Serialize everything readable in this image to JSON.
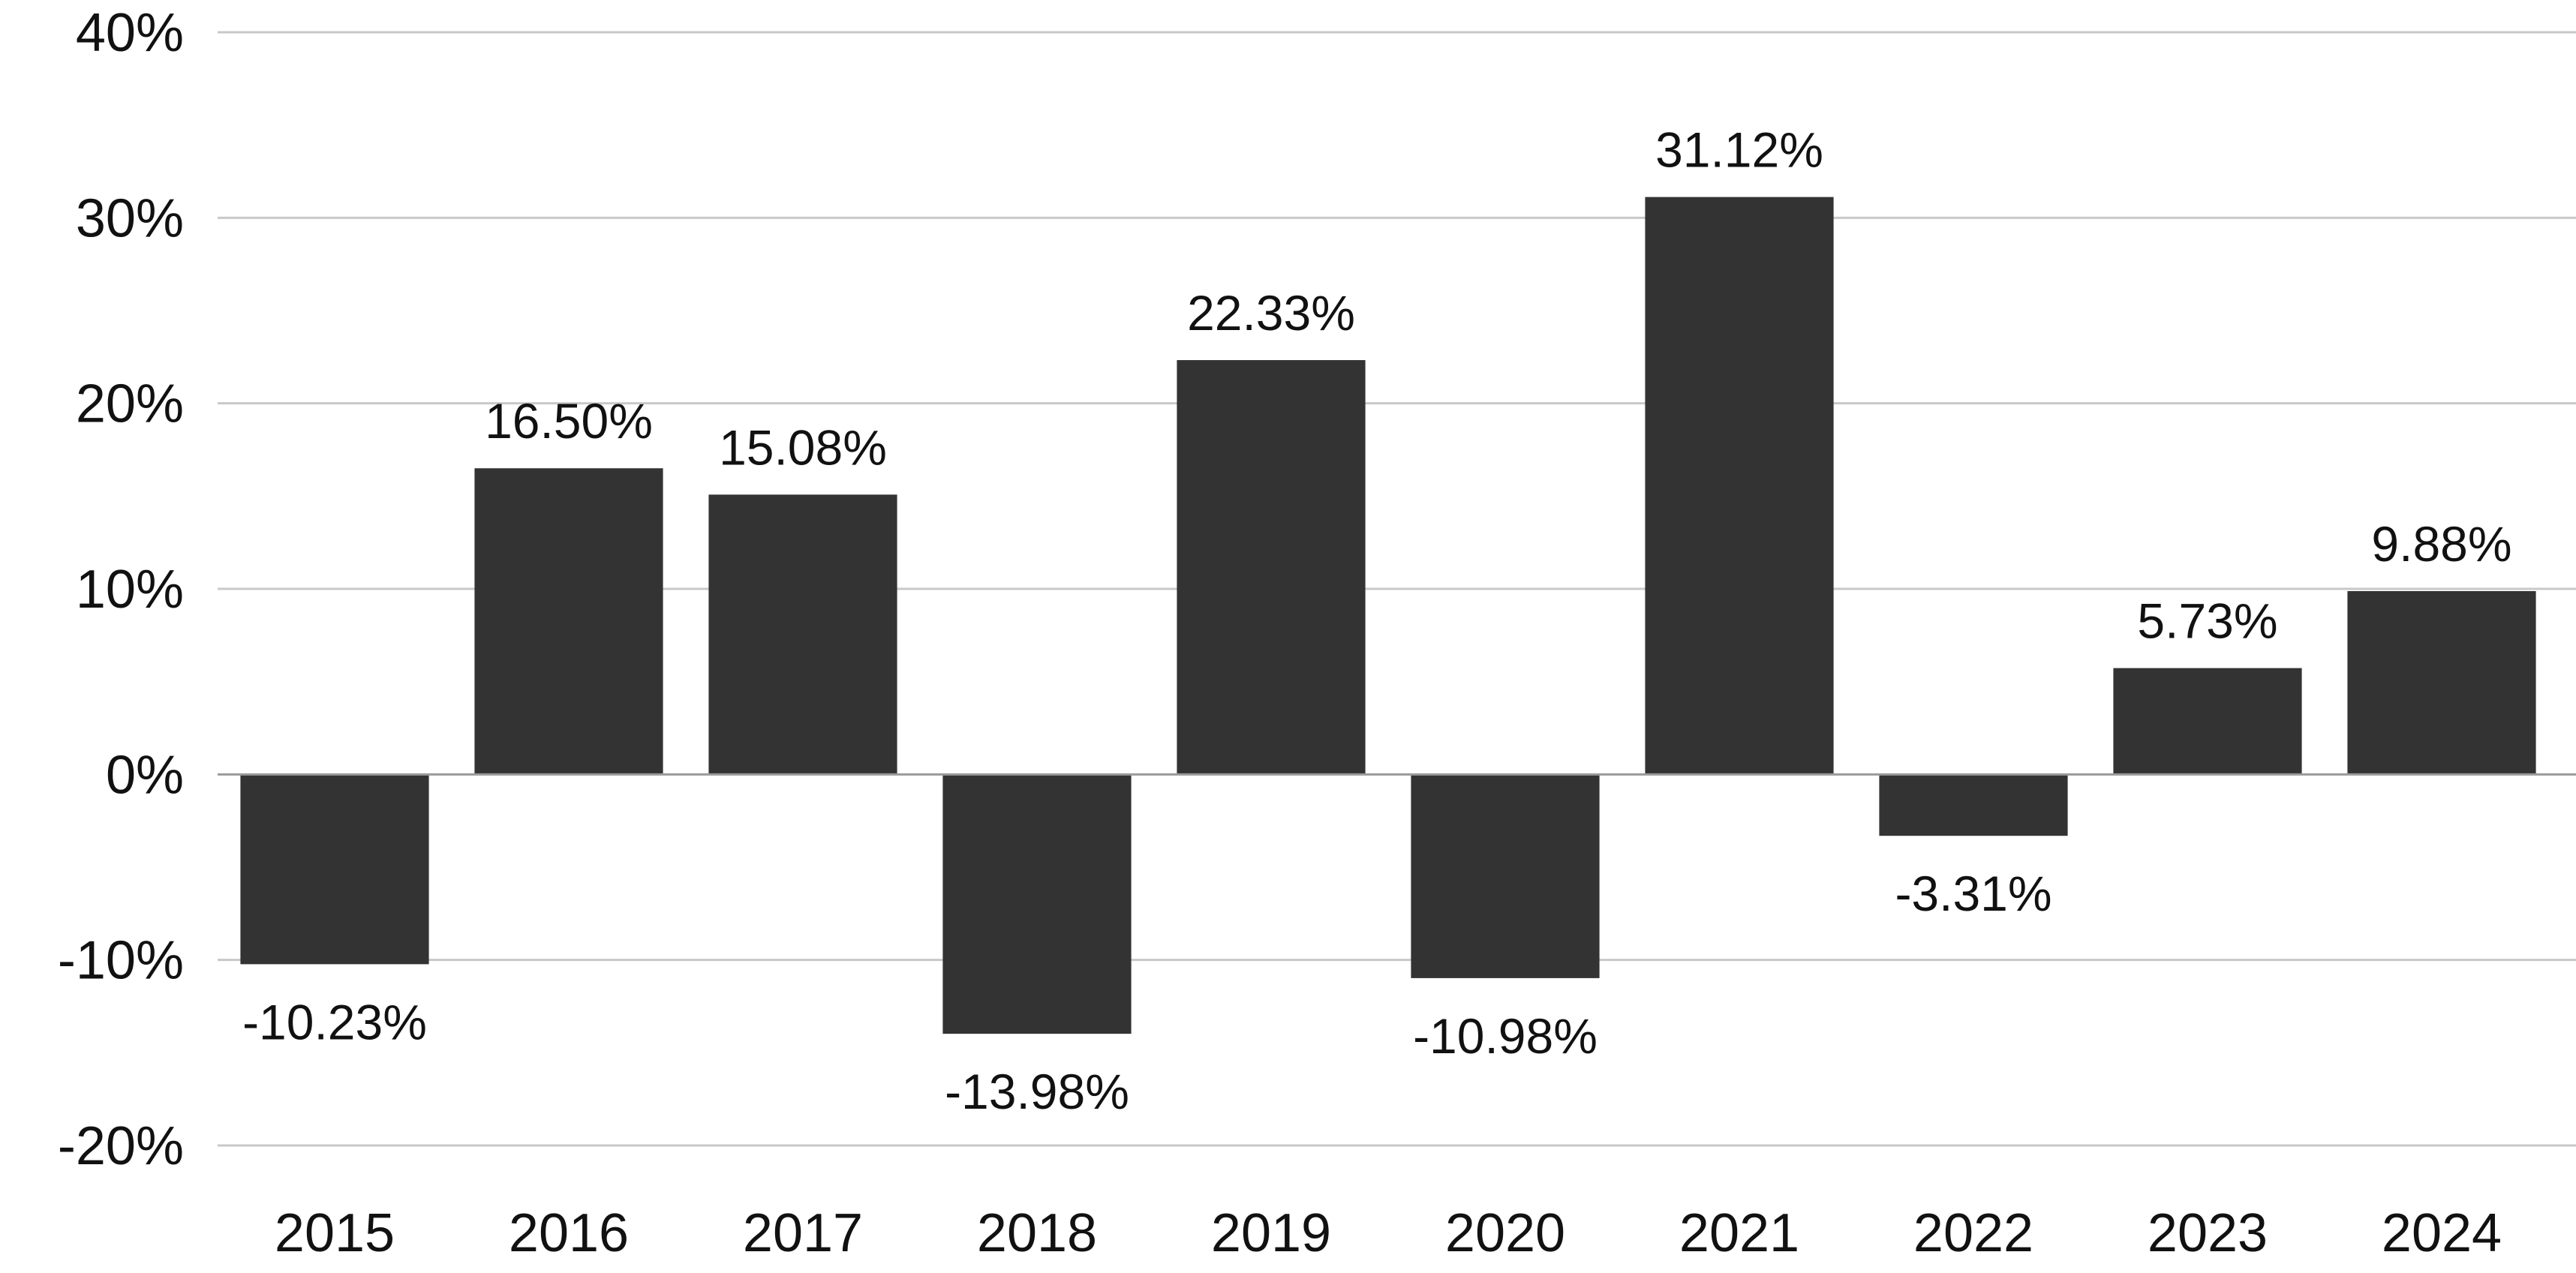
{
  "chart_data": {
    "type": "bar",
    "categories": [
      "2015",
      "2016",
      "2017",
      "2018",
      "2019",
      "2020",
      "2021",
      "2022",
      "2023",
      "2024"
    ],
    "values": [
      -10.23,
      16.5,
      15.08,
      -13.98,
      22.33,
      -10.98,
      31.12,
      -3.31,
      5.73,
      9.88
    ],
    "data_labels": [
      "-10.23%",
      "16.50%",
      "15.08%",
      "-13.98%",
      "22.33%",
      "-10.98%",
      "31.12%",
      "-3.31%",
      "5.73%",
      "9.88%"
    ],
    "ylim": [
      -20,
      40
    ],
    "yticks": [
      40,
      30,
      20,
      10,
      0,
      -10,
      -20
    ],
    "ytick_labels": [
      "40%",
      "30%",
      "20%",
      "10%",
      "0%",
      "-10%",
      "-20%"
    ],
    "grid": true,
    "legend": "none",
    "colors": {
      "bar": "#333333",
      "grid": "#c8c8c8",
      "zero_line": "#9a9a9a",
      "text": "#111111"
    }
  }
}
